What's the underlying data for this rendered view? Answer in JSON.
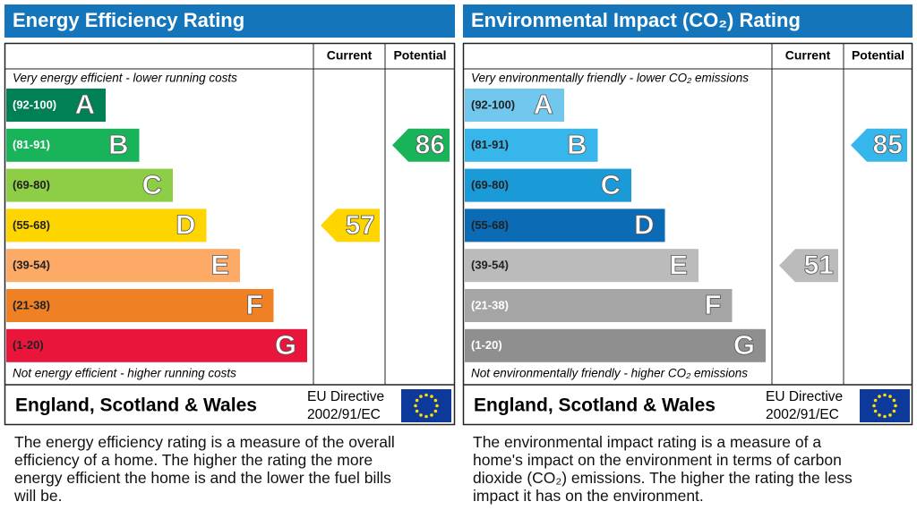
{
  "panels": [
    {
      "title": "Energy Efficiency Rating",
      "header": {
        "current": "Current",
        "potential": "Potential"
      },
      "top_note": "Very energy efficient - lower running costs",
      "bottom_note": "Not energy efficient - higher running costs",
      "bands": [
        {
          "range": "(92-100)",
          "letter": "A",
          "color": "#008054",
          "text_color": "#ffffff"
        },
        {
          "range": "(81-91)",
          "letter": "B",
          "color": "#19b459",
          "text_color": "#ffffff"
        },
        {
          "range": "(69-80)",
          "letter": "C",
          "color": "#8dce46",
          "text_color": "#222222"
        },
        {
          "range": "(55-68)",
          "letter": "D",
          "color": "#ffd500",
          "text_color": "#222222"
        },
        {
          "range": "(39-54)",
          "letter": "E",
          "color": "#fcaa65",
          "text_color": "#222222"
        },
        {
          "range": "(21-38)",
          "letter": "F",
          "color": "#ef8023",
          "text_color": "#222222"
        },
        {
          "range": "(1-20)",
          "letter": "G",
          "color": "#e9153b",
          "text_color": "#222222"
        }
      ],
      "current": 57,
      "potential": 86,
      "footer": {
        "region": "England, Scotland & Wales",
        "directive": [
          "EU Directive",
          "2002/91/EC"
        ]
      },
      "description": "The energy efficiency rating is a measure of the overall efficiency of a home. The higher the rating the more energy efficient the home is and the lower the fuel bills will be."
    },
    {
      "title": "Environmental Impact (CO₂) Rating",
      "header": {
        "current": "Current",
        "potential": "Potential"
      },
      "top_note": "Very environmentally friendly - lower CO₂ emissions",
      "bottom_note": "Not environmentally friendly - higher CO₂ emissions",
      "bands": [
        {
          "range": "(92-100)",
          "letter": "A",
          "color": "#72c7ee",
          "text_color": "#222222"
        },
        {
          "range": "(81-91)",
          "letter": "B",
          "color": "#36b6ea",
          "text_color": "#222222"
        },
        {
          "range": "(69-80)",
          "letter": "C",
          "color": "#1a9ad6",
          "text_color": "#222222"
        },
        {
          "range": "(55-68)",
          "letter": "D",
          "color": "#0b6bb5",
          "text_color": "#222222"
        },
        {
          "range": "(39-54)",
          "letter": "E",
          "color": "#bbbbbb",
          "text_color": "#222222"
        },
        {
          "range": "(21-38)",
          "letter": "F",
          "color": "#a5a5a5",
          "text_color": "#ffffff"
        },
        {
          "range": "(1-20)",
          "letter": "G",
          "color": "#8f8f8f",
          "text_color": "#ffffff"
        }
      ],
      "current": 51,
      "potential": 85,
      "footer": {
        "region": "England, Scotland & Wales",
        "directive": [
          "EU Directive",
          "2002/91/EC"
        ]
      },
      "description": "The environmental impact rating is a measure of a home's impact on the environment in terms of carbon dioxide (CO₂) emissions. The higher the rating the less impact it has on the environment."
    }
  ]
}
